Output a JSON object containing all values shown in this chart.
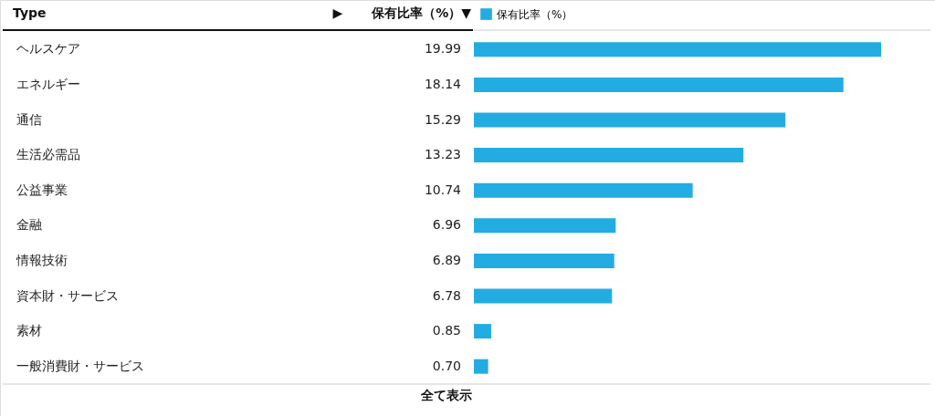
{
  "chart_data": {
    "type": "bar",
    "orientation": "horizontal",
    "categories": [
      "ヘルスケア",
      "エネルギー",
      "通信",
      "生活必需品",
      "公益事業",
      "金融",
      "情報技術",
      "資本財・サービス",
      "素材",
      "一般消費財・サービス"
    ],
    "series": [
      {
        "name": "保有比率（%）",
        "color": "#23ace2",
        "values": [
          19.99,
          18.14,
          15.29,
          13.23,
          10.74,
          6.96,
          6.89,
          6.78,
          0.85,
          0.7
        ],
        "value_labels": [
          "19.99",
          "18.14",
          "15.29",
          "13.23",
          "10.74",
          "6.96",
          "6.89",
          "6.78",
          "0.85",
          "0.70"
        ]
      }
    ],
    "legend": "top",
    "annotations": [
      "Type",
      "▶",
      "保有比率（%）▼",
      "全て表示"
    ]
  }
}
